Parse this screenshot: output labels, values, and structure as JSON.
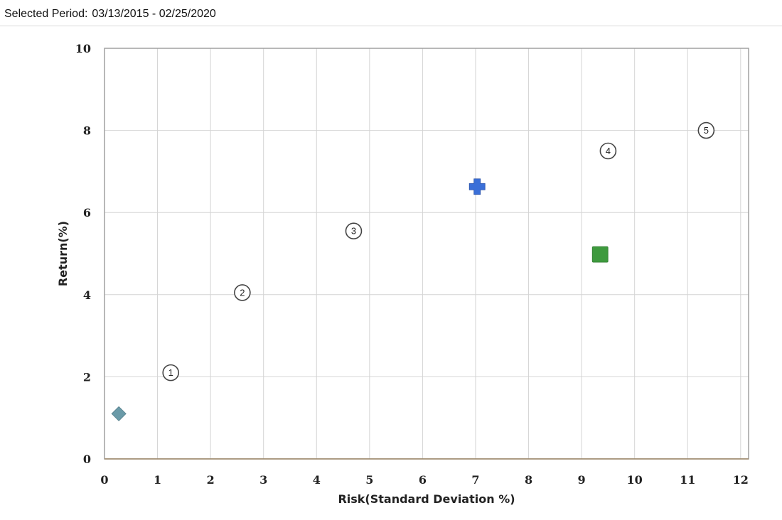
{
  "header": {
    "period_label": "Selected Period:",
    "period_value": "03/13/2015 - 02/25/2020"
  },
  "chart_data": {
    "type": "scatter",
    "title": "",
    "xlabel": "Risk(Standard Deviation %)",
    "ylabel": "Return(%)",
    "xlim": [
      0,
      12.15
    ],
    "ylim": [
      0,
      10
    ],
    "xticks": [
      0,
      1,
      2,
      3,
      4,
      5,
      6,
      7,
      8,
      9,
      10,
      11,
      12
    ],
    "yticks": [
      0,
      2,
      4,
      6,
      8,
      10
    ],
    "grid": true,
    "legend": "none",
    "points": [
      {
        "marker": "circle-number",
        "label": "1",
        "x": 1.25,
        "y": 2.1
      },
      {
        "marker": "circle-number",
        "label": "2",
        "x": 2.6,
        "y": 4.05
      },
      {
        "marker": "circle-number",
        "label": "3",
        "x": 4.7,
        "y": 5.55
      },
      {
        "marker": "circle-number",
        "label": "4",
        "x": 9.5,
        "y": 7.5
      },
      {
        "marker": "circle-number",
        "label": "5",
        "x": 11.35,
        "y": 8.0
      },
      {
        "marker": "plus",
        "x": 7.03,
        "y": 6.63,
        "color": "#3a6fd8"
      },
      {
        "marker": "square",
        "x": 9.35,
        "y": 4.98,
        "color": "#3e9a3e"
      },
      {
        "marker": "diamond",
        "x": 0.27,
        "y": 1.1,
        "color": "#6a9aa8"
      }
    ]
  },
  "colors": {
    "grid": "#d4d4d4",
    "frame": "#a0a0a0",
    "x_axis": "#a08a6a"
  }
}
